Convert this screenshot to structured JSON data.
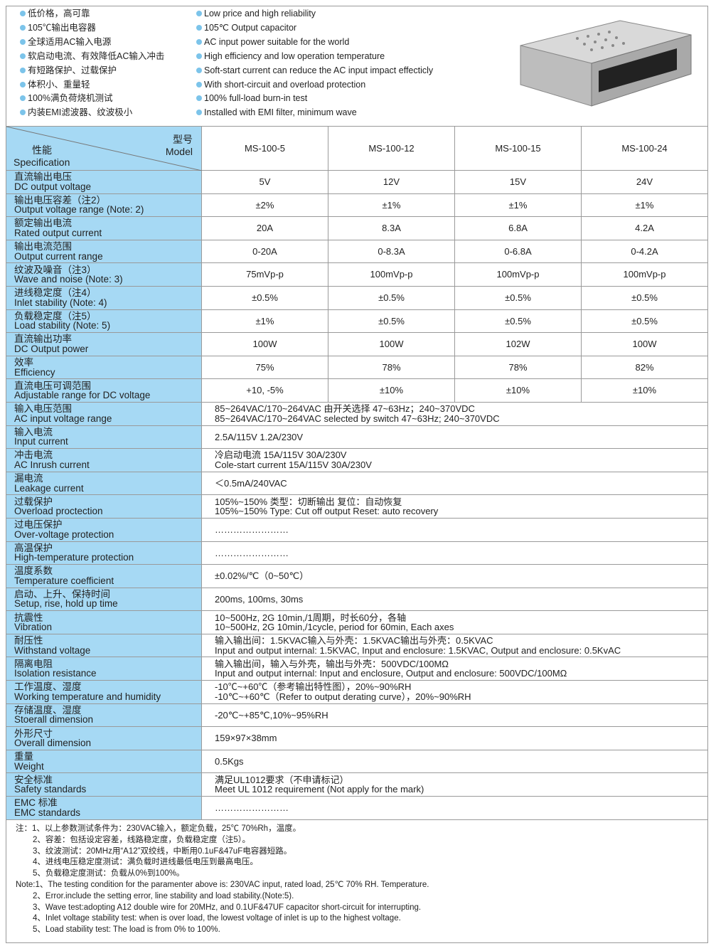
{
  "features_cn": [
    "低价格，高可靠",
    "105℃输出电容器",
    "全球适用AC输入电源",
    "软启动电流、有效降低AC输入冲击",
    "有短路保护、过载保护",
    "体积小、重量轻",
    "100%满负荷烧机测试",
    "内装EMI滤波器、纹波极小"
  ],
  "features_en": [
    "Low price and high reliability",
    "105℃ Output capacitor",
    "AC input power suitable for the world",
    "High efficiency and low operation temperature",
    "Soft-start current can reduce the AC input impact effecticly",
    "With short-circuit and overload protection",
    "100% full-load burn-in test",
    "Installed with EMI filter, minimum wave"
  ],
  "header": {
    "model_cn": "型号",
    "model_en": "Model",
    "spec_cn": "性能",
    "spec_en": "Specification",
    "models": [
      "MS-100-5",
      "MS-100-12",
      "MS-100-15",
      "MS-100-24"
    ]
  },
  "colors": {
    "label_bg": "#a6d9f4",
    "bullet": "#7cc4ea"
  },
  "rows": [
    {
      "cn": "直流输出电压",
      "en": "DC output voltage",
      "vals": [
        "5V",
        "12V",
        "15V",
        "24V"
      ]
    },
    {
      "cn": "输出电压容差（注2）",
      "en": "Output voltage range (Note: 2)",
      "vals": [
        "±2%",
        "±1%",
        "±1%",
        "±1%"
      ]
    },
    {
      "cn": "额定输出电流",
      "en": "Rated output current",
      "vals": [
        "20A",
        "8.3A",
        "6.8A",
        "4.2A"
      ]
    },
    {
      "cn": "输出电流范围",
      "en": "Output current range",
      "vals": [
        "0-20A",
        "0-8.3A",
        "0-6.8A",
        "0-4.2A"
      ]
    },
    {
      "cn": "纹波及噪音（注3）",
      "en": "Wave and noise (Note: 3)",
      "vals": [
        "75mVp-p",
        "100mVp-p",
        "100mVp-p",
        "100mVp-p"
      ]
    },
    {
      "cn": "进线稳定度（注4）",
      "en": "Inlet stability (Note: 4)",
      "vals": [
        "±0.5%",
        "±0.5%",
        "±0.5%",
        "±0.5%"
      ]
    },
    {
      "cn": "负载稳定度（注5）",
      "en": "Load stability (Note: 5)",
      "vals": [
        "±1%",
        "±0.5%",
        "±0.5%",
        "±0.5%"
      ]
    },
    {
      "cn": "直流输出功率",
      "en": "DC Output power",
      "vals": [
        "100W",
        "100W",
        "102W",
        "100W"
      ]
    },
    {
      "cn": "效率",
      "en": "Efficiency",
      "vals": [
        "75%",
        "78%",
        "78%",
        "82%"
      ]
    },
    {
      "cn": "直流电压可调范围",
      "en": "Adjustable range for DC voltage",
      "vals": [
        "+10, -5%",
        "±10%",
        "±10%",
        "±10%"
      ]
    },
    {
      "cn": "输入电压范围",
      "en": "AC input voltage range",
      "text": [
        "85~264VAC/170~264VAC 由开关选择 47~63Hz；240~370VDC",
        "85~264VAC/170~264VAC selected by switch 47~63Hz; 240~370VDC"
      ]
    },
    {
      "cn": "输入电流",
      "en": "Input current",
      "text": [
        "2.5A/115V  1.2A/230V"
      ]
    },
    {
      "cn": "冲击电流",
      "en": "AC Inrush current",
      "text": [
        "冷启动电流 15A/115V  30A/230V",
        "Cole-start current 15A/115V  30A/230V"
      ]
    },
    {
      "cn": "漏电流",
      "en": "Leakage current",
      "text": [
        "＜0.5mA/240VAC"
      ]
    },
    {
      "cn": "过载保护",
      "en": "Overload proctection",
      "text": [
        "105%~150% 类型：切断输出  复位：自动恢复",
        "105%~150% Type: Cut off output  Reset: auto recovery"
      ]
    },
    {
      "cn": "过电压保护",
      "en": "Over-voltage protection",
      "text": [
        "……………………"
      ]
    },
    {
      "cn": "高温保护",
      "en": "High-temperature protection",
      "text": [
        "……………………"
      ]
    },
    {
      "cn": "温度系数",
      "en": "Temperature coefficient",
      "text": [
        "±0.02%/℃（0~50℃）"
      ]
    },
    {
      "cn": "启动、上升、保持时间",
      "en": "Setup, rise, hold up time",
      "text": [
        "200ms, 100ms, 30ms"
      ]
    },
    {
      "cn": "抗震性",
      "en": "Vibration",
      "text": [
        "10~500Hz, 2G 10min,/1周期，时长60分，各轴",
        "10~500Hz, 2G 10min,/1cycle, period for 60min, Each axes"
      ]
    },
    {
      "cn": "耐压性",
      "en": "Withstand voltage",
      "text": [
        "输入输出间：1.5KVAC输入与外壳：1.5KVAC输出与外壳：0.5KVAC",
        "Input and output internal: 1.5KVAC, Input and enclosure: 1.5KVAC, Output and enclosure: 0.5KvAC"
      ]
    },
    {
      "cn": "隔离电阻",
      "en": "Isolation resistance",
      "text": [
        "输入输出间，输入与外壳，输出与外壳：500VDC/100MΩ",
        "Input and output internal: Input and enclosure, Output and enclosure: 500VDC/100MΩ"
      ]
    },
    {
      "cn": "工作温度、湿度",
      "en": "Working temperature and humidity",
      "text": [
        "-10℃~+60℃（参考输出特性图），20%~90%RH",
        "-10℃~+60℃（Refer to output derating curve），20%~90%RH"
      ]
    },
    {
      "cn": "存储温度、湿度",
      "en": "Stoerall dimension",
      "text": [
        "-20℃~+85℃,10%~95%RH"
      ]
    },
    {
      "cn": "外形尺寸",
      "en": "Overall dimension",
      "text": [
        "159×97×38mm"
      ]
    },
    {
      "cn": "重量",
      "en": "Weight",
      "text": [
        "0.5Kgs"
      ]
    },
    {
      "cn": "安全标准",
      "en": "Safety standards",
      "text": [
        "满足UL1012要求（不申请标记）",
        "Meet UL 1012 requirement (Not apply for the mark)"
      ]
    },
    {
      "cn": "EMC 标准",
      "en": "EMC standards",
      "text": [
        "……………………"
      ]
    }
  ],
  "notes_cn": [
    "注：1、以上参数测试条件为：230VAC输入，额定负载，25℃  70%Rh，温度。",
    "2、容差：包括设定容差，线路稳定度，负载稳定度（注5）。",
    "3、纹波测试：20MHz用“A12”双绞线，中断用0.1uF&47uF电容器短路。",
    "4、进线电压稳定度测试：满负载时进线最低电压到最高电压。",
    "5、负载稳定度测试：负载从0%到100%。"
  ],
  "notes_en": [
    "Note:1、The testing condition for the paramenter above is: 230VAC input, rated load, 25℃ 70% RH. Temperature.",
    "2、Error.include the setting error, line stability and load stability.(Note:5).",
    "3、Wave test:adopting  A12  double wire for 20MHz, and 0.1UF&47UF capacitor short-circuit for interrupting.",
    "4、Inlet voltage stability test: when is over load, the lowest voltage of inlet is up to the highest voltage.",
    "5、Load stability test: The load is from 0% to 100%."
  ]
}
